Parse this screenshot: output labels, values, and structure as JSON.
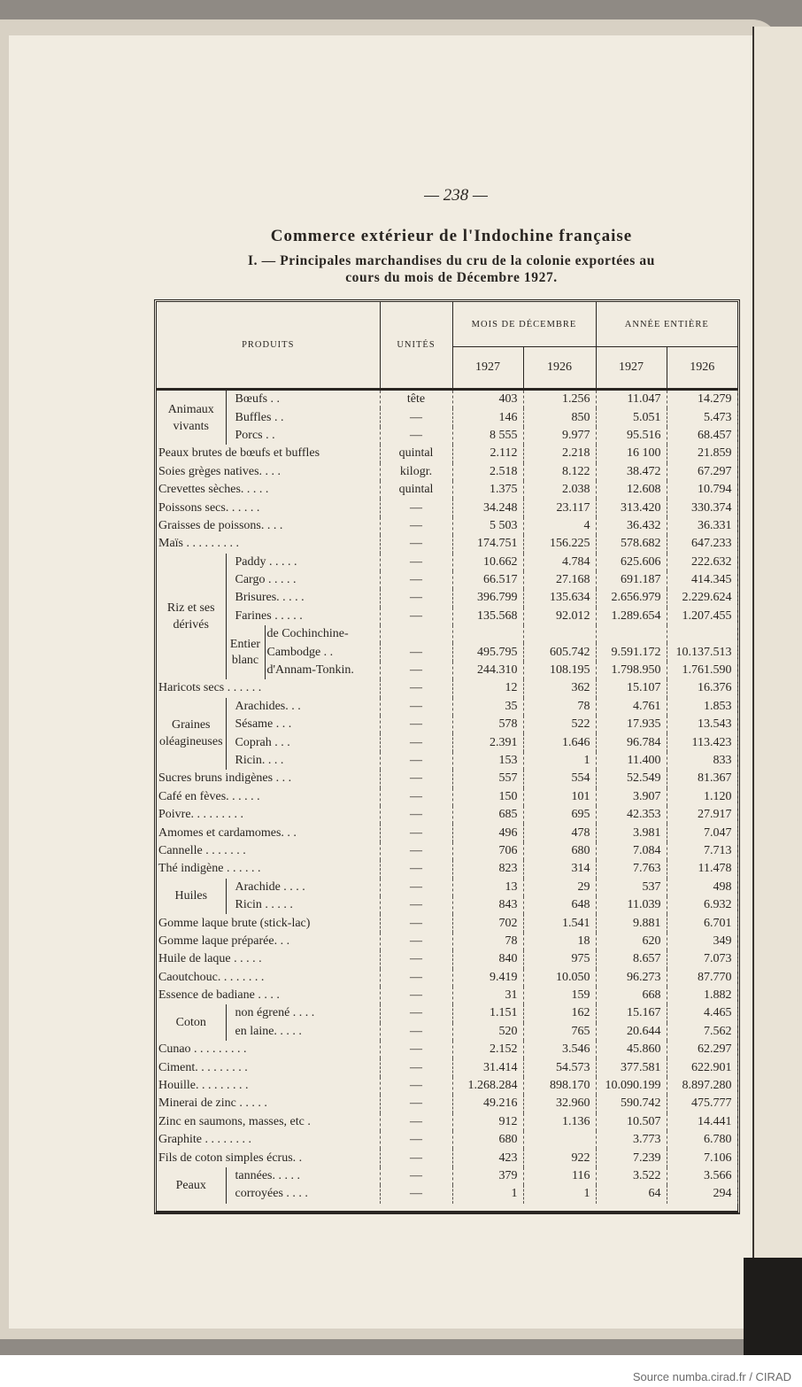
{
  "page_number": "— 238 —",
  "title": "Commerce extérieur de l'Indochine française",
  "subtitle_line1": "I. — Principales marchandises du cru de la colonie exportées au",
  "subtitle_line2": "cours du mois de Décembre 1927.",
  "header": {
    "produits": "PRODUITS",
    "unites": "UNITÉS",
    "mois": "MOIS DE DÉCEMBRE",
    "annee": "ANNÉE ENTIÈRE",
    "y1": "1927",
    "y2": "1926",
    "y3": "1927",
    "y4": "1926"
  },
  "rows": [
    {
      "group": "Animaux vivants",
      "items": [
        {
          "label": "Bœufs . .",
          "unit": "tête",
          "d27": "403",
          "d26": "1.256",
          "y27": "11.047",
          "y26": "14.279"
        },
        {
          "label": "Buffles . .",
          "unit": "—",
          "d27": "146",
          "d26": "850",
          "y27": "5.051",
          "y26": "5.473"
        },
        {
          "label": "Porcs . .",
          "unit": "—",
          "d27": "8 555",
          "d26": "9.977",
          "y27": "95.516",
          "y26": "68.457"
        }
      ]
    },
    {
      "label": "Peaux brutes de bœufs et buffles",
      "unit": "quintal",
      "d27": "2.112",
      "d26": "2.218",
      "y27": "16 100",
      "y26": "21.859"
    },
    {
      "label": "Soies grèges natives. . . .",
      "unit": "kilogr.",
      "d27": "2.518",
      "d26": "8.122",
      "y27": "38.472",
      "y26": "67.297"
    },
    {
      "label": "Crevettes sèches. . . . .",
      "unit": "quintal",
      "d27": "1.375",
      "d26": "2.038",
      "y27": "12.608",
      "y26": "10.794"
    },
    {
      "label": "Poissons secs. . . . . .",
      "unit": "—",
      "d27": "34.248",
      "d26": "23.117",
      "y27": "313.420",
      "y26": "330.374"
    },
    {
      "label": "Graisses de poissons. . . .",
      "unit": "—",
      "d27": "5 503",
      "d26": "4",
      "y27": "36.432",
      "y26": "36.331"
    },
    {
      "label": "Maïs . . . . . . . . .",
      "unit": "—",
      "d27": "174.751",
      "d26": "156.225",
      "y27": "578.682",
      "y26": "647.233"
    },
    {
      "group": "Riz et ses dérivés",
      "items": [
        {
          "label": "Paddy . . . . .",
          "unit": "—",
          "d27": "10.662",
          "d26": "4.784",
          "y27": "625.606",
          "y26": "222.632"
        },
        {
          "label": "Cargo . . . . .",
          "unit": "—",
          "d27": "66.517",
          "d26": "27.168",
          "y27": "691.187",
          "y26": "414.345"
        },
        {
          "label": "Brisures. . . . .",
          "unit": "—",
          "d27": "396.799",
          "d26": "135.634",
          "y27": "2.656.979",
          "y26": "2.229.624"
        },
        {
          "label": "Farines . . . . .",
          "unit": "—",
          "d27": "135.568",
          "d26": "92.012",
          "y27": "1.289.654",
          "y26": "1.207.455"
        }
      ],
      "subgroup": {
        "label": "Entier blanc",
        "items": [
          {
            "label": "de Cochinchine-",
            "unit": "",
            "d27": "",
            "d26": "",
            "y27": "",
            "y26": ""
          },
          {
            "label": "Cambodge . .",
            "unit": "—",
            "d27": "495.795",
            "d26": "605.742",
            "y27": "9.591.172",
            "y26": "10.137.513"
          },
          {
            "label": "d'Annam-Tonkin.",
            "unit": "—",
            "d27": "244.310",
            "d26": "108.195",
            "y27": "1.798.950",
            "y26": "1.761.590"
          }
        ]
      }
    },
    {
      "label": "Haricots secs . . . . . .",
      "unit": "—",
      "d27": "12",
      "d26": "362",
      "y27": "15.107",
      "y26": "16.376"
    },
    {
      "group": "Graines oléagineuses",
      "items": [
        {
          "label": "Arachides. . .",
          "unit": "—",
          "d27": "35",
          "d26": "78",
          "y27": "4.761",
          "y26": "1.853"
        },
        {
          "label": "Sésame . . .",
          "unit": "—",
          "d27": "578",
          "d26": "522",
          "y27": "17.935",
          "y26": "13.543"
        },
        {
          "label": "Coprah . . .",
          "unit": "—",
          "d27": "2.391",
          "d26": "1.646",
          "y27": "96.784",
          "y26": "113.423"
        },
        {
          "label": "Ricin. . . .",
          "unit": "—",
          "d27": "153",
          "d26": "1",
          "y27": "11.400",
          "y26": "833"
        }
      ]
    },
    {
      "label": "Sucres bruns indigènes . . .",
      "unit": "—",
      "d27": "557",
      "d26": "554",
      "y27": "52.549",
      "y26": "81.367"
    },
    {
      "label": "Café en fèves. . . . . .",
      "unit": "—",
      "d27": "150",
      "d26": "101",
      "y27": "3.907",
      "y26": "1.120"
    },
    {
      "label": "Poivre. . . . . . . . .",
      "unit": "—",
      "d27": "685",
      "d26": "695",
      "y27": "42.353",
      "y26": "27.917"
    },
    {
      "label": "Amomes et cardamomes. . .",
      "unit": "—",
      "d27": "496",
      "d26": "478",
      "y27": "3.981",
      "y26": "7.047"
    },
    {
      "label": "Cannelle . . . . . . .",
      "unit": "—",
      "d27": "706",
      "d26": "680",
      "y27": "7.084",
      "y26": "7.713"
    },
    {
      "label": "Thé indigène . . . . . .",
      "unit": "—",
      "d27": "823",
      "d26": "314",
      "y27": "7.763",
      "y26": "11.478"
    },
    {
      "group": "Huiles",
      "items": [
        {
          "label": "Arachide . . . .",
          "unit": "—",
          "d27": "13",
          "d26": "29",
          "y27": "537",
          "y26": "498"
        },
        {
          "label": "Ricin . . . . .",
          "unit": "—",
          "d27": "843",
          "d26": "648",
          "y27": "11.039",
          "y26": "6.932"
        }
      ]
    },
    {
      "label": "Gomme laque brute (stick-lac)",
      "unit": "—",
      "d27": "702",
      "d26": "1.541",
      "y27": "9.881",
      "y26": "6.701"
    },
    {
      "label": "Gomme laque préparée. . .",
      "unit": "—",
      "d27": "78",
      "d26": "18",
      "y27": "620",
      "y26": "349"
    },
    {
      "label": "Huile de laque . . . . .",
      "unit": "—",
      "d27": "840",
      "d26": "975",
      "y27": "8.657",
      "y26": "7.073"
    },
    {
      "label": "Caoutchouc. . . . . . . .",
      "unit": "—",
      "d27": "9.419",
      "d26": "10.050",
      "y27": "96.273",
      "y26": "87.770"
    },
    {
      "label": "Essence de badiane . . . .",
      "unit": "—",
      "d27": "31",
      "d26": "159",
      "y27": "668",
      "y26": "1.882"
    },
    {
      "group": "Coton",
      "items": [
        {
          "label": "non égrené . . . .",
          "unit": "—",
          "d27": "1.151",
          "d26": "162",
          "y27": "15.167",
          "y26": "4.465"
        },
        {
          "label": "en laine. . . . .",
          "unit": "—",
          "d27": "520",
          "d26": "765",
          "y27": "20.644",
          "y26": "7.562"
        }
      ]
    },
    {
      "label": "Cunao . . . . . . . . .",
      "unit": "—",
      "d27": "2.152",
      "d26": "3.546",
      "y27": "45.860",
      "y26": "62.297"
    },
    {
      "label": "Ciment. . . . . . . . .",
      "unit": "—",
      "d27": "31.414",
      "d26": "54.573",
      "y27": "377.581",
      "y26": "622.901"
    },
    {
      "label": "Houille. . . . . . . . .",
      "unit": "—",
      "d27": "1.268.284",
      "d26": "898.170",
      "y27": "10.090.199",
      "y26": "8.897.280"
    },
    {
      "label": "Minerai de zinc . . . . .",
      "unit": "—",
      "d27": "49.216",
      "d26": "32.960",
      "y27": "590.742",
      "y26": "475.777"
    },
    {
      "label": "Zinc en saumons, masses, etc .",
      "unit": "—",
      "d27": "912",
      "d26": "1.136",
      "y27": "10.507",
      "y26": "14.441"
    },
    {
      "label": "Graphite . . . . . . . .",
      "unit": "—",
      "d27": "680",
      "d26": "",
      "y27": "3.773",
      "y26": "6.780"
    },
    {
      "label": "Fils de coton simples écrus. .",
      "unit": "—",
      "d27": "423",
      "d26": "922",
      "y27": "7.239",
      "y26": "7.106"
    },
    {
      "group": "Peaux",
      "items": [
        {
          "label": "tannées. . . . .",
          "unit": "—",
          "d27": "379",
          "d26": "116",
          "y27": "3.522",
          "y26": "3.566"
        },
        {
          "label": "corroyées . . . .",
          "unit": "—",
          "d27": "1",
          "d26": "1",
          "y27": "64",
          "y26": "294"
        }
      ]
    }
  ],
  "footer": "Source numba.cirad.fr / CIRAD"
}
